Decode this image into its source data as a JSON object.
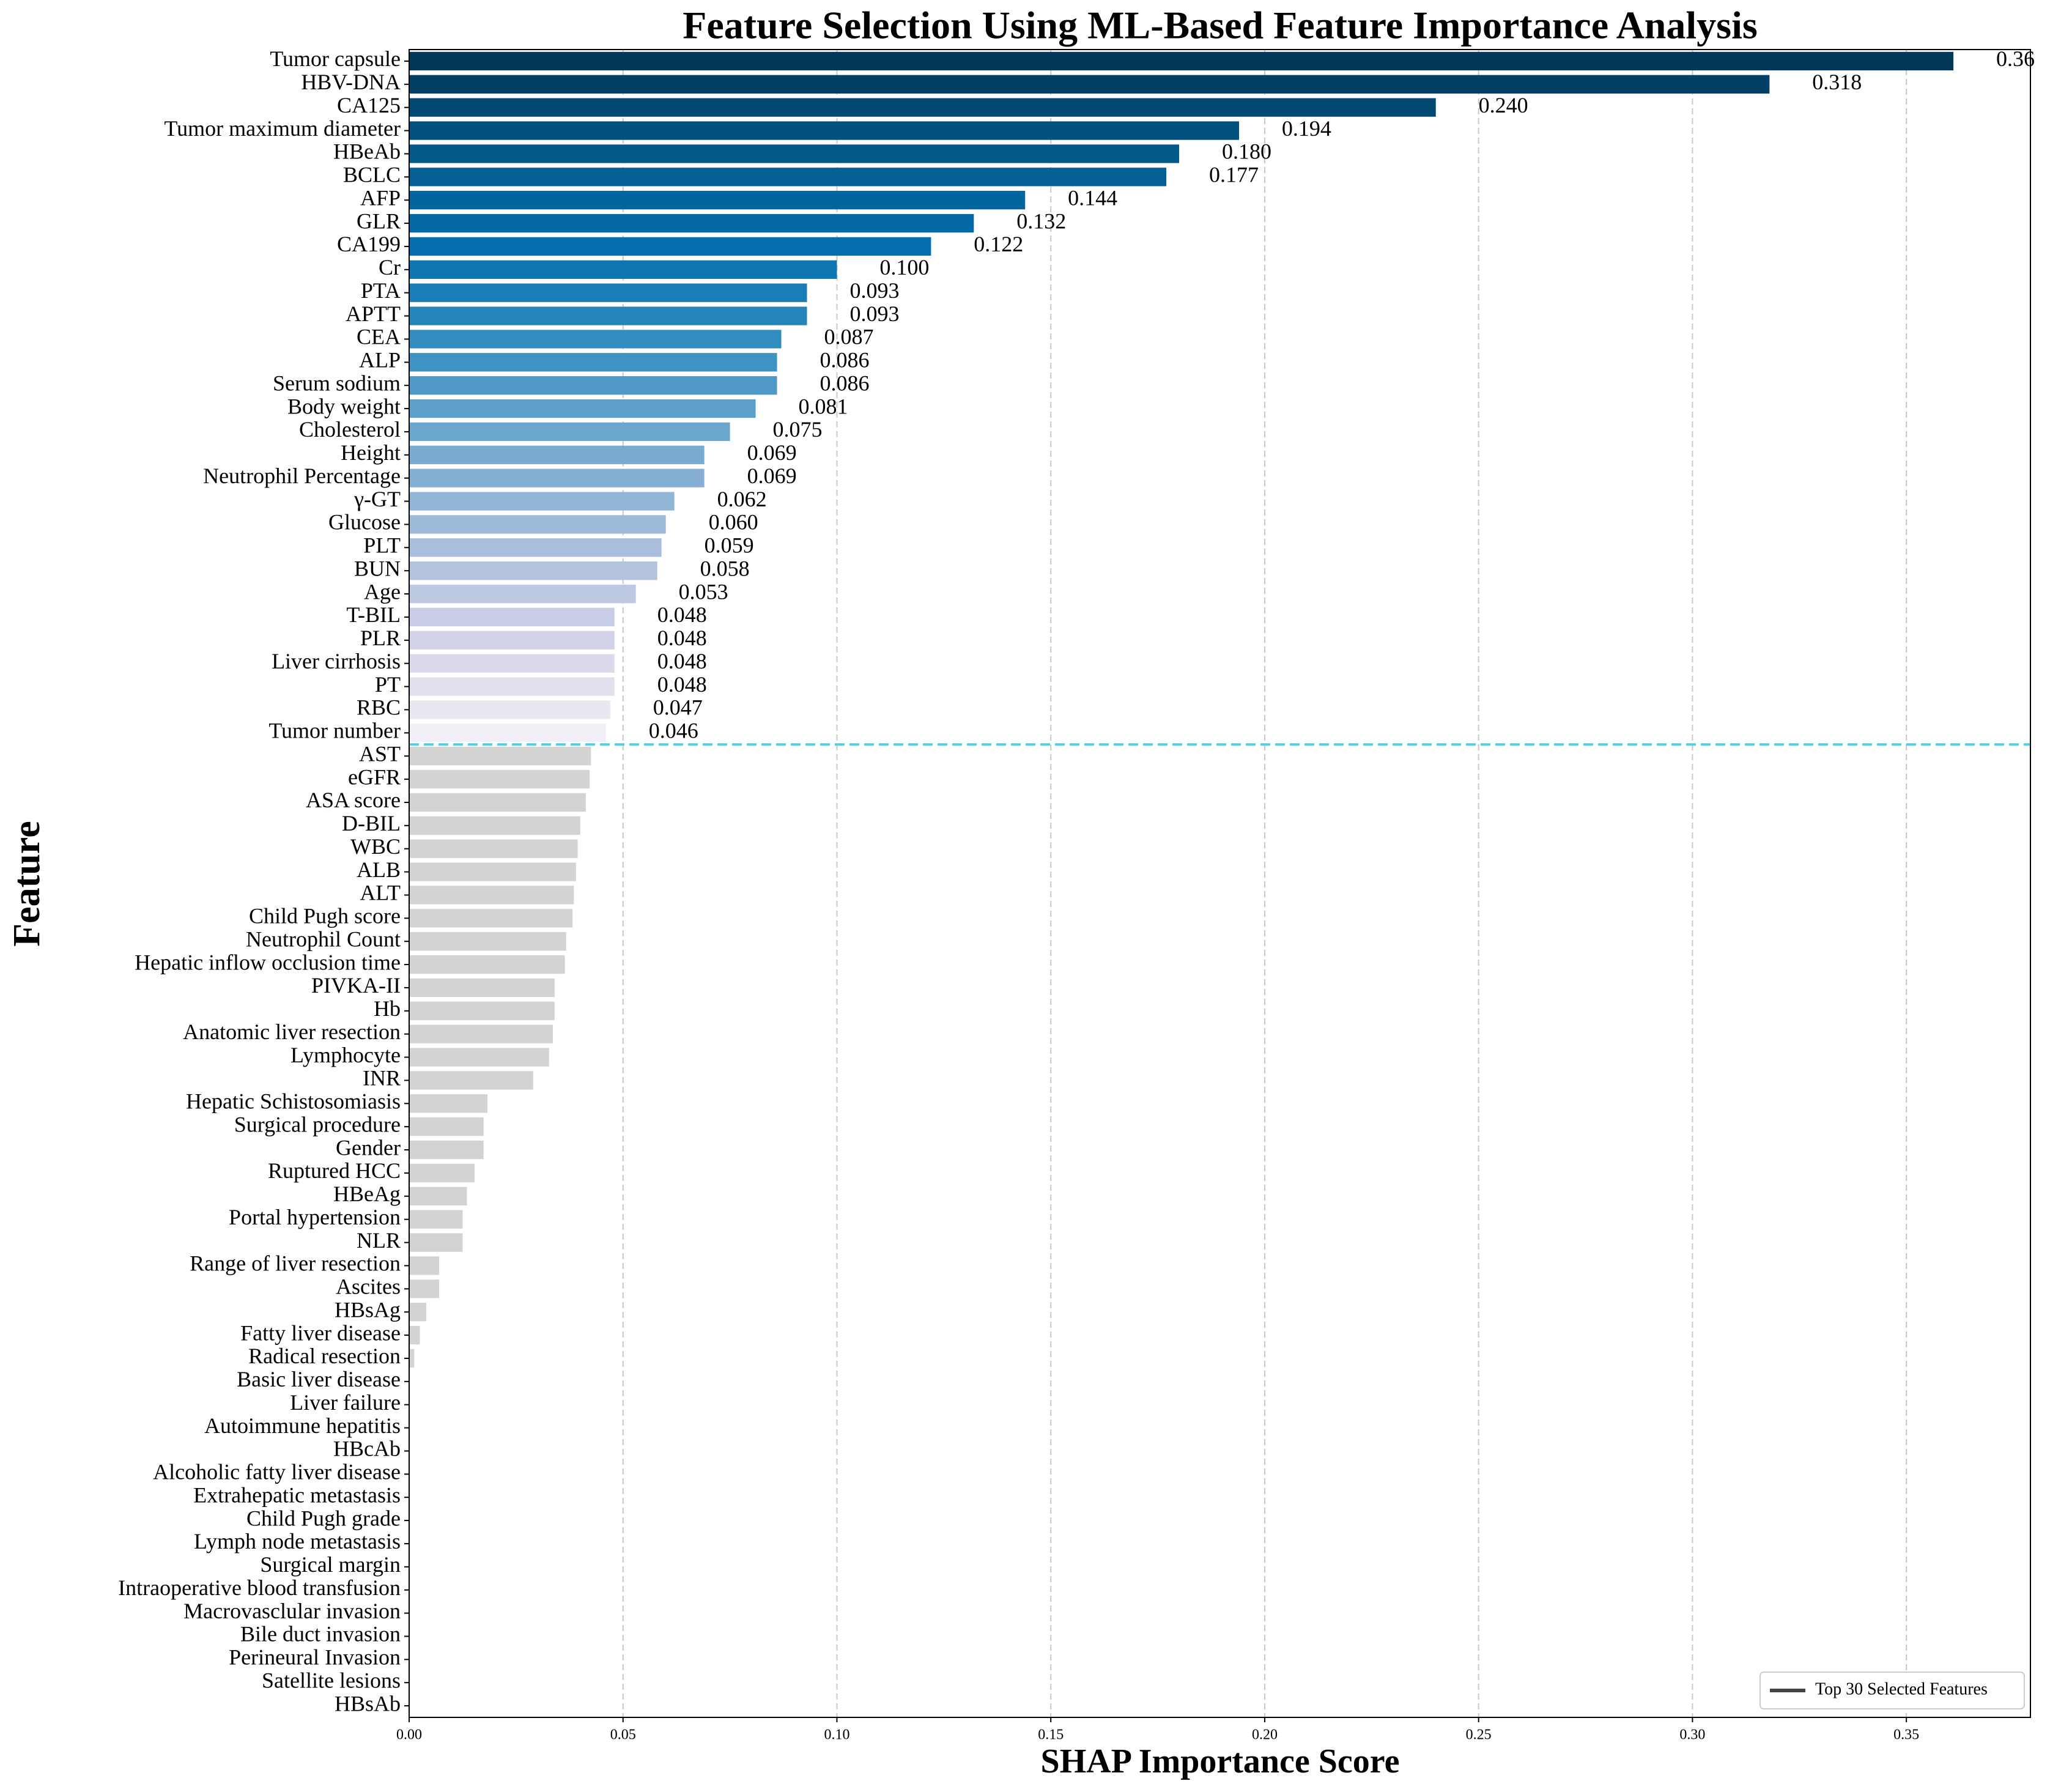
{
  "chart_data": {
    "type": "barh",
    "title": "Feature Selection Using ML-Based Feature Importance Analysis",
    "x_label": "SHAP Importance Score",
    "y_label": "Feature",
    "categories": [
      "Tumor capsule",
      "HBV-DNA",
      "CA125",
      "Tumor maximum diameter",
      "HBeAb",
      "BCLC",
      "AFP",
      "GLR",
      "CA199",
      "Cr",
      "PTA",
      "APTT",
      "CEA",
      "ALP",
      "Serum sodium",
      "Body weight",
      "Cholesterol",
      "Height",
      "Neutrophil Percentage",
      "γ-GT",
      "Glucose",
      "PLT",
      "BUN",
      "Age",
      "T-BIL",
      "PLR",
      "Liver cirrhosis",
      "PT",
      "RBC",
      "Tumor number",
      "AST",
      "eGFR",
      "ASA score",
      "D-BIL",
      "WBC",
      "ALB",
      "ALT",
      "Child Pugh score",
      "Neutrophil Count",
      "Hepatic inflow occlusion time",
      "PIVKA-II",
      "Hb",
      "Anatomic liver resection",
      "Lymphocyte",
      "INR",
      "Hepatic Schistosomiasis",
      "Surgical procedure",
      "Gender",
      "Ruptured HCC",
      "HBeAg",
      "Portal hypertension",
      "NLR",
      "Range of liver resection",
      "Ascites",
      "HBsAg",
      "Fatty liver disease",
      "Radical resection",
      "Basic liver disease",
      "Liver failure",
      "Autoimmune hepatitis",
      "HBcAb",
      "Alcoholic fatty liver disease",
      "Extrahepatic metastasis",
      "Child Pugh grade",
      "Lymph node metastasis",
      "Surgical margin",
      "Intraoperative blood transfusion",
      "Macrovasclular invasion",
      "Bile duct invasion",
      "Perineural Invasion",
      "Satellite lesions",
      "HBsAb"
    ],
    "values": [
      0.361,
      0.318,
      0.24,
      0.194,
      0.18,
      0.177,
      0.144,
      0.132,
      0.122,
      0.1,
      0.093,
      0.093,
      0.087,
      0.086,
      0.086,
      0.081,
      0.075,
      0.069,
      0.069,
      0.062,
      0.06,
      0.059,
      0.058,
      0.053,
      0.048,
      0.048,
      0.048,
      0.048,
      0.047,
      0.046,
      0.0425,
      0.0422,
      0.0413,
      0.04,
      0.0394,
      0.039,
      0.0385,
      0.0382,
      0.0367,
      0.0364,
      0.034,
      0.034,
      0.0336,
      0.0327,
      0.029,
      0.0183,
      0.0174,
      0.0174,
      0.0153,
      0.0135,
      0.0125,
      0.0125,
      0.007,
      0.007,
      0.004,
      0.0025,
      0.0012,
      0,
      0,
      0,
      0,
      0,
      0,
      0,
      0,
      0,
      0,
      0,
      0,
      0,
      0,
      0
    ],
    "value_labels": [
      "0.36",
      "0.318",
      "0.240",
      "0.194",
      "0.180",
      "0.177",
      "0.144",
      "0.132",
      "0.122",
      "0.100",
      "0.093",
      "0.093",
      "0.087",
      "0.086",
      "0.086",
      "0.081",
      "0.075",
      "0.069",
      "0.069",
      "0.062",
      "0.060",
      "0.059",
      "0.058",
      "0.053",
      "0.048",
      "0.048",
      "0.048",
      "0.048",
      "0.047",
      "0.046",
      null,
      null,
      null,
      null,
      null,
      null,
      null,
      null,
      null,
      null,
      null,
      null,
      null,
      null,
      null,
      null,
      null,
      null,
      null,
      null,
      null,
      null,
      null,
      null,
      null,
      null,
      null,
      null,
      null,
      null,
      null,
      null,
      null,
      null,
      null,
      null,
      null,
      null,
      null,
      null,
      null,
      null
    ],
    "highlight_count": 30,
    "highlight_colors": [
      "#023858",
      "#045a8d",
      "#0570b0",
      "#3690c0",
      "#74a9cf",
      "#a6bddb",
      "#d0d1e6",
      "#f1eef6"
    ],
    "other_color": "#d3d3d3",
    "threshold_color": "#4dd0e1",
    "legend_label": "Top 30 Selected Features",
    "legend_loc": "lower right",
    "xlim": [
      0,
      0.379
    ],
    "xticks": [
      {
        "value": 0,
        "label": "0.00"
      },
      {
        "value": 0.05,
        "label": "0.05"
      },
      {
        "value": 0.1,
        "label": "0.10"
      },
      {
        "value": 0.15,
        "label": "0.15"
      },
      {
        "value": 0.2,
        "label": "0.20"
      },
      {
        "value": 0.25,
        "label": "0.25"
      },
      {
        "value": 0.3,
        "label": "0.30"
      },
      {
        "value": 0.35,
        "label": "0.35"
      }
    ],
    "grid": true
  }
}
